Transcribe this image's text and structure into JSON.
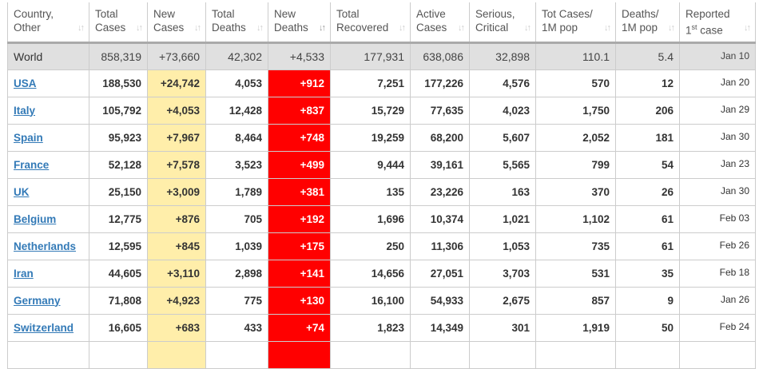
{
  "headers": [
    {
      "line1": "Country,",
      "line2": "Other"
    },
    {
      "line1": "Total",
      "line2": "Cases"
    },
    {
      "line1": "New",
      "line2": "Cases"
    },
    {
      "line1": "Total",
      "line2": "Deaths"
    },
    {
      "line1": "New",
      "line2": "Deaths",
      "active": true
    },
    {
      "line1": "Total",
      "line2": "Recovered"
    },
    {
      "line1": "Active",
      "line2": "Cases"
    },
    {
      "line1": "Serious,",
      "line2": "Critical"
    },
    {
      "line1": "Tot Cases/",
      "line2": "1M pop"
    },
    {
      "line1": "Deaths/",
      "line2": "1M pop"
    },
    {
      "line1": "Reported",
      "line2_pre": "1",
      "line2_sup": "st",
      "line2": " case"
    }
  ],
  "sort_icon": "sort-arrows-icon",
  "colors": {
    "new_cases_bg": "#ffeeaa",
    "new_deaths_bg": "#ff0000",
    "world_bg": "#e0e0e0",
    "link": "#337ab7"
  },
  "world": [
    "World",
    "858,319",
    "+73,660",
    "42,302",
    "+4,533",
    "177,931",
    "638,086",
    "32,898",
    "110.1",
    "5.4",
    "Jan 10"
  ],
  "rows": [
    [
      "USA",
      "188,530",
      "+24,742",
      "4,053",
      "+912",
      "7,251",
      "177,226",
      "4,576",
      "570",
      "12",
      "Jan 20"
    ],
    [
      "Italy",
      "105,792",
      "+4,053",
      "12,428",
      "+837",
      "15,729",
      "77,635",
      "4,023",
      "1,750",
      "206",
      "Jan 29"
    ],
    [
      "Spain",
      "95,923",
      "+7,967",
      "8,464",
      "+748",
      "19,259",
      "68,200",
      "5,607",
      "2,052",
      "181",
      "Jan 30"
    ],
    [
      "France",
      "52,128",
      "+7,578",
      "3,523",
      "+499",
      "9,444",
      "39,161",
      "5,565",
      "799",
      "54",
      "Jan 23"
    ],
    [
      "UK",
      "25,150",
      "+3,009",
      "1,789",
      "+381",
      "135",
      "23,226",
      "163",
      "370",
      "26",
      "Jan 30"
    ],
    [
      "Belgium",
      "12,775",
      "+876",
      "705",
      "+192",
      "1,696",
      "10,374",
      "1,021",
      "1,102",
      "61",
      "Feb 03"
    ],
    [
      "Netherlands",
      "12,595",
      "+845",
      "1,039",
      "+175",
      "250",
      "11,306",
      "1,053",
      "735",
      "61",
      "Feb 26"
    ],
    [
      "Iran",
      "44,605",
      "+3,110",
      "2,898",
      "+141",
      "14,656",
      "27,051",
      "3,703",
      "531",
      "35",
      "Feb 18"
    ],
    [
      "Germany",
      "71,808",
      "+4,923",
      "775",
      "+130",
      "16,100",
      "54,933",
      "2,675",
      "857",
      "9",
      "Jan 26"
    ],
    [
      "Switzerland",
      "16,605",
      "+683",
      "433",
      "+74",
      "1,823",
      "14,349",
      "301",
      "1,919",
      "50",
      "Feb 24"
    ]
  ]
}
